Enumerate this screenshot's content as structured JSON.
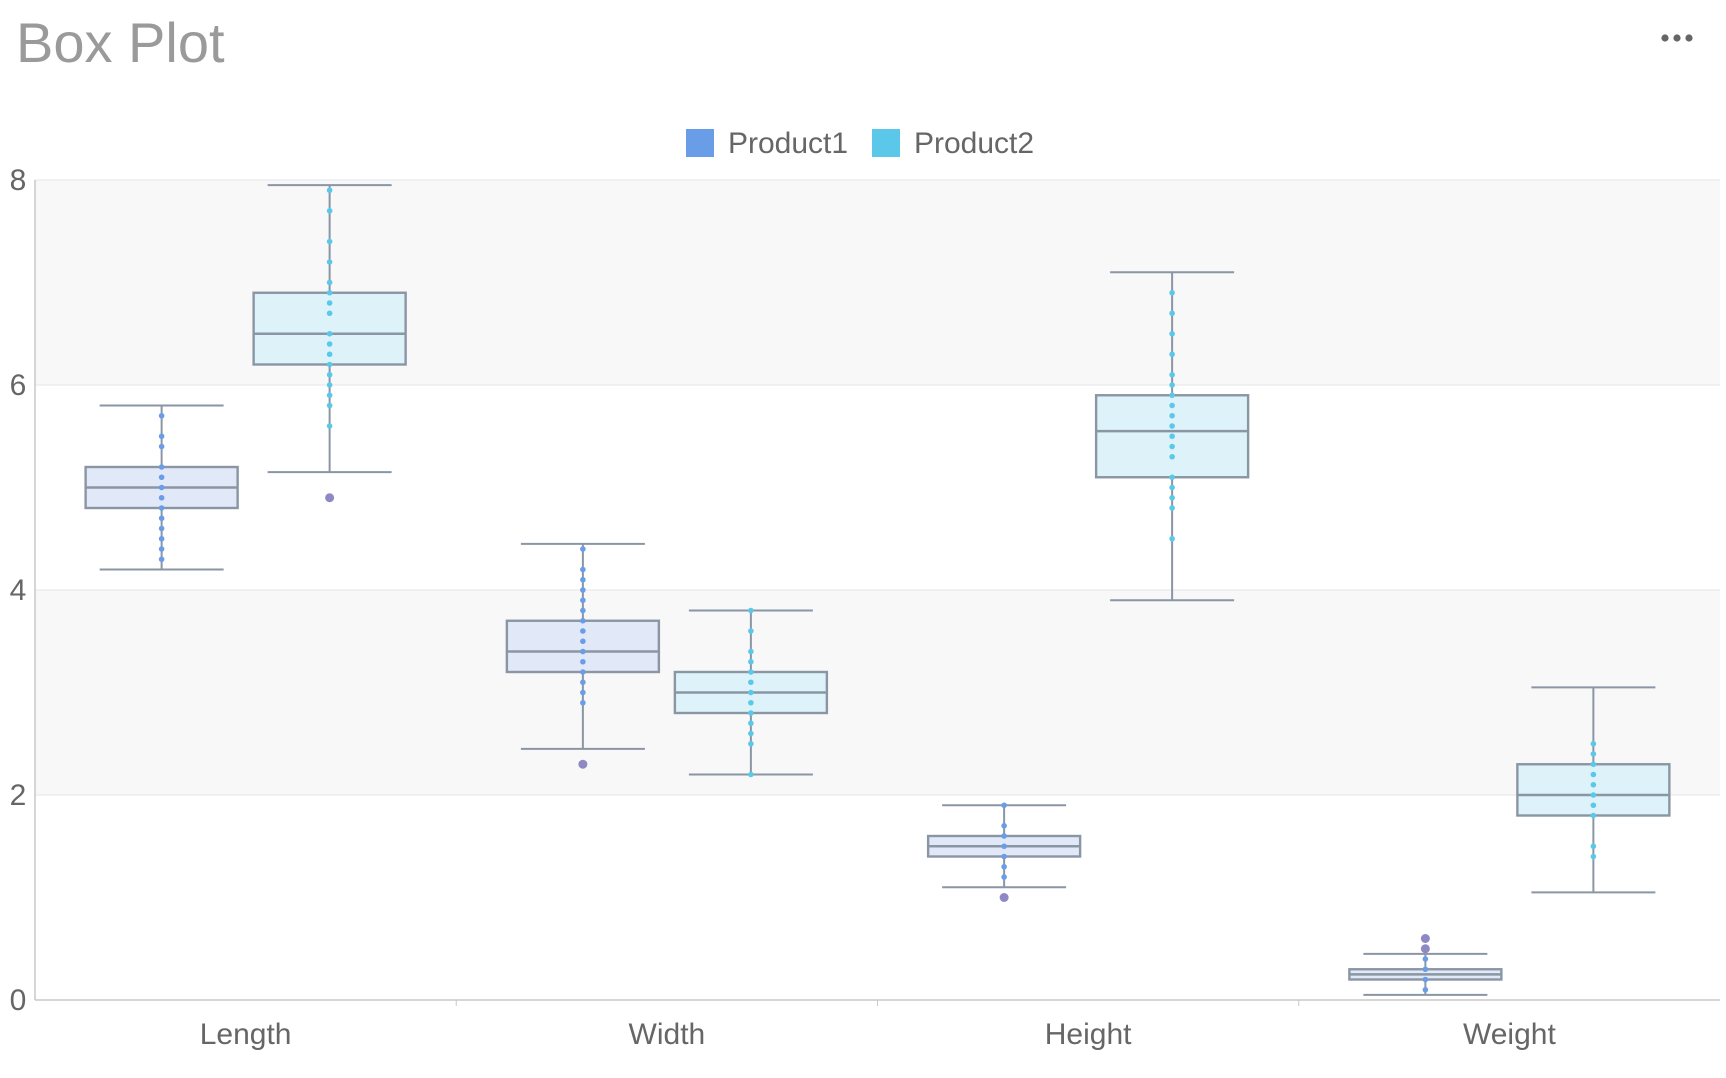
{
  "title": "Box Plot",
  "menu_icon": "more-horizontal-icon",
  "colors": {
    "Product1": "#6a9de8",
    "Product2": "#5bc8ea",
    "box_stroke": "#8a96a4",
    "box_fill_1": "#e1e8f8",
    "box_fill_2": "#ddf3f9",
    "band": "#f8f8f8",
    "grid": "#e6e6e6",
    "axis": "#c8c8c8",
    "text": "#666666",
    "outlier": "#8e88c4"
  },
  "legend": [
    "Product1",
    "Product2"
  ],
  "chart_data": {
    "type": "boxplot",
    "title": "Box Plot",
    "categories": [
      "Length",
      "Width",
      "Height",
      "Weight"
    ],
    "ylim": [
      0,
      8
    ],
    "yticks": [
      "0",
      "2",
      "4",
      "6",
      "8"
    ],
    "grid": true,
    "legend_position": "top-center",
    "series": [
      {
        "name": "Product1",
        "boxes": [
          {
            "category": "Length",
            "min": 4.2,
            "q1": 4.8,
            "median": 5.0,
            "q3": 5.2,
            "max": 5.8,
            "outliers": [],
            "points": [
              4.3,
              4.4,
              4.5,
              4.6,
              4.7,
              4.8,
              4.9,
              5.0,
              5.1,
              5.2,
              5.4,
              5.5,
              5.7
            ]
          },
          {
            "category": "Width",
            "min": 2.45,
            "q1": 3.2,
            "median": 3.4,
            "q3": 3.7,
            "max": 4.45,
            "outliers": [
              2.3
            ],
            "points": [
              2.9,
              3.0,
              3.1,
              3.2,
              3.3,
              3.4,
              3.5,
              3.6,
              3.7,
              3.8,
              3.9,
              4.0,
              4.1,
              4.2,
              4.4
            ]
          },
          {
            "category": "Height",
            "min": 1.1,
            "q1": 1.4,
            "median": 1.5,
            "q3": 1.6,
            "max": 1.9,
            "outliers": [
              1.0
            ],
            "points": [
              1.2,
              1.3,
              1.4,
              1.5,
              1.6,
              1.7,
              1.9
            ]
          },
          {
            "category": "Weight",
            "min": 0.05,
            "q1": 0.2,
            "median": 0.25,
            "q3": 0.3,
            "max": 0.45,
            "outliers": [
              0.5,
              0.6
            ],
            "points": [
              0.1,
              0.2,
              0.3,
              0.4
            ]
          }
        ]
      },
      {
        "name": "Product2",
        "boxes": [
          {
            "category": "Length",
            "min": 5.15,
            "q1": 6.2,
            "median": 6.5,
            "q3": 6.9,
            "max": 7.95,
            "outliers": [
              4.9
            ],
            "points": [
              5.6,
              5.8,
              5.9,
              6.0,
              6.1,
              6.2,
              6.3,
              6.4,
              6.5,
              6.7,
              6.8,
              6.9,
              7.0,
              7.2,
              7.4,
              7.7,
              7.9
            ]
          },
          {
            "category": "Width",
            "min": 2.2,
            "q1": 2.8,
            "median": 3.0,
            "q3": 3.2,
            "max": 3.8,
            "outliers": [],
            "points": [
              2.2,
              2.5,
              2.6,
              2.7,
              2.8,
              2.9,
              3.0,
              3.1,
              3.2,
              3.3,
              3.4,
              3.6,
              3.8
            ]
          },
          {
            "category": "Height",
            "min": 3.9,
            "q1": 5.1,
            "median": 5.55,
            "q3": 5.9,
            "max": 7.1,
            "outliers": [],
            "points": [
              4.5,
              4.8,
              4.9,
              5.0,
              5.1,
              5.3,
              5.4,
              5.5,
              5.6,
              5.7,
              5.8,
              5.9,
              6.0,
              6.1,
              6.3,
              6.5,
              6.7,
              6.9
            ]
          },
          {
            "category": "Weight",
            "min": 1.05,
            "q1": 1.8,
            "median": 2.0,
            "q3": 2.3,
            "max": 3.05,
            "outliers": [],
            "points": [
              1.4,
              1.5,
              1.8,
              1.9,
              2.0,
              2.1,
              2.2,
              2.3,
              2.4,
              2.5
            ]
          }
        ]
      }
    ]
  }
}
